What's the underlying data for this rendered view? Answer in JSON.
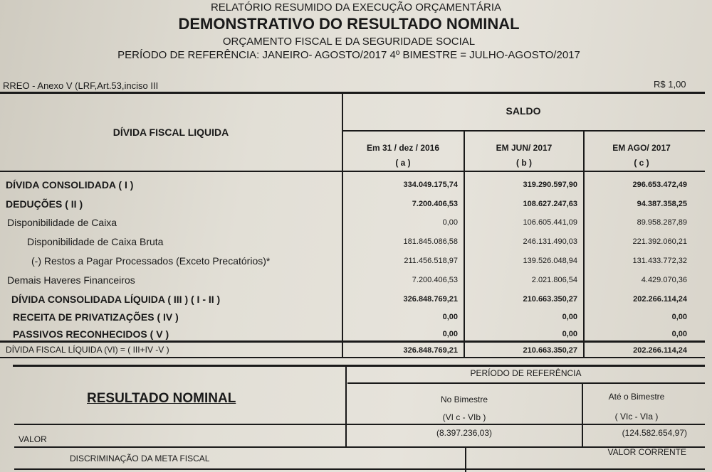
{
  "header": {
    "line1": "RELATÓRIO RESUMIDO DA EXECUÇÃO ORÇAMENTÁRIA",
    "title": "DEMONSTRATIVO DO RESULTADO NOMINAL",
    "line3": "ORÇAMENTO FISCAL E DA SEGURIDADE SOCIAL",
    "period": "PERÍODO DE REFERÊNCIA: JANEIRO- AGOSTO/2017   4º BIMESTRE = JULHO-AGOSTO/2017",
    "annex": "RREO - Anexo V (LRF,Art.53,inciso III",
    "unit": "R$ 1,00"
  },
  "table1": {
    "label_header": "DÍVIDA FISCAL LIQUIDA",
    "saldo_header": "SALDO",
    "columns": [
      {
        "title": "Em 31 / dez / 2016",
        "code": "( a )"
      },
      {
        "title": "EM JUN/ 2017",
        "code": "( b )"
      },
      {
        "title": "EM AGO/ 2017",
        "code": "( c )"
      }
    ],
    "rows": [
      {
        "label": "DÍVIDA CONSOLIDADA ( I )",
        "values": [
          "334.049.175,74",
          "319.290.597,90",
          "296.653.472,49"
        ]
      },
      {
        "label": "DEDUÇÕES ( II )",
        "values": [
          "7.200.406,53",
          "108.627.247,63",
          "94.387.358,25"
        ]
      },
      {
        "label": "Disponibilidade de Caixa",
        "values": [
          "0,00",
          "106.605.441,09",
          "89.958.287,89"
        ]
      },
      {
        "label": "Disponibilidade de Caixa Bruta",
        "values": [
          "181.845.086,58",
          "246.131.490,03",
          "221.392.060,21"
        ]
      },
      {
        "label": "(-) Restos a Pagar Processados (Exceto Precatórios)*",
        "values": [
          "211.456.518,97",
          "139.526.048,94",
          "131.433.772,32"
        ]
      },
      {
        "label": "Demais Haveres Financeiros",
        "values": [
          "7.200.406,53",
          "2.021.806,54",
          "4.429.070,36"
        ]
      },
      {
        "label": "DÍVIDA CONSOLIDADA LÍQUIDA ( III )   ( I - II )",
        "values": [
          "326.848.769,21",
          "210.663.350,27",
          "202.266.114,24"
        ]
      },
      {
        "label": "RECEITA DE PRIVATIZAÇÕES ( IV )",
        "values": [
          "0,00",
          "0,00",
          "0,00"
        ]
      },
      {
        "label": "PASSIVOS RECONHECIDOS ( V )",
        "values": [
          "0,00",
          "0,00",
          "0,00"
        ]
      },
      {
        "label": "DÍVIDA FISCAL LÍQUIDA (VI) = ( III+IV -V )",
        "values": [
          "326.848.769,21",
          "210.663.350,27",
          "202.266.114,24"
        ]
      }
    ]
  },
  "table2": {
    "title": "RESULTADO NOMINAL",
    "period_header": "PERÍODO DE REFERÊNCIA",
    "col1": {
      "title": "No Bimestre",
      "code": "(VI c - VIb )"
    },
    "col2": {
      "title": "Até o Bimestre",
      "code": "( VIc - VIa )"
    },
    "row_label": "VALOR",
    "values": [
      "(8.397.236,03)",
      "(124.582.654,97)"
    ]
  },
  "table3": {
    "label": "DISCRIMINAÇÃO DA META FISCAL",
    "col": "VALOR CORRENTE"
  }
}
